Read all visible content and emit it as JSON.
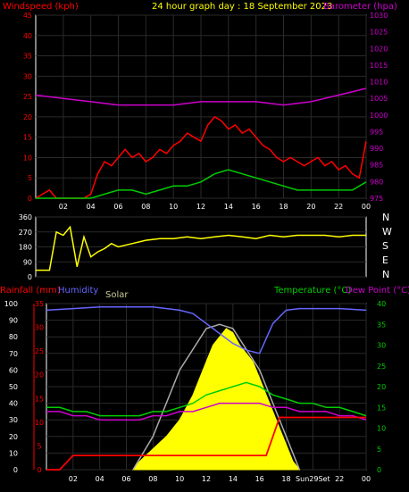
{
  "colors": {
    "bg": "#000000",
    "panel_border": "#ffffff",
    "grid": "#2a2a2a",
    "wind": "#ff0000",
    "wind_avg": "#00cc00",
    "gust_fill": "#c8f0c8",
    "baro": "#cc00cc",
    "dir": "#ffff00",
    "humidity": "#6666ff",
    "temp": "#00cc00",
    "dew": "#cc00cc",
    "solar": "#ffff00",
    "solar_curve": "#aaaaaa",
    "rain": "#ff0000",
    "rain_axis": "#ff0000",
    "title_text": "#ffff00"
  },
  "header": {
    "left_label": "Windspeed (kph)",
    "title": "24 hour graph day : 18 September 2023",
    "right_label": "Barometer (hpa)"
  },
  "bottom_header": {
    "rain_label": "Rainfall (mm)",
    "humidity_label": "Humidity",
    "solar_label": "Solar",
    "temp_label": "Temperature (°C)",
    "dew_label": "Dew Point (°C)"
  },
  "chart_data": [
    {
      "type": "line",
      "name": "wind",
      "x_ticks": [
        "02",
        "04",
        "06",
        "08",
        "10",
        "12",
        "14",
        "16",
        "18",
        "20",
        "22",
        "00"
      ],
      "y_left_ticks": [
        "0",
        "5",
        "10",
        "15",
        "20",
        "25",
        "30",
        "35",
        "40",
        "45"
      ],
      "y_left_range": [
        0,
        45
      ],
      "y_right_ticks": [
        "975",
        "980",
        "985",
        "990",
        "995",
        "1000",
        "1005",
        "1010",
        "1015",
        "1020",
        "1025",
        "1030"
      ],
      "y_right_range": [
        975,
        1030
      ],
      "x_range_hours": [
        0,
        24
      ],
      "wind_speed": {
        "x": [
          0,
          0.5,
          1,
          1.5,
          2,
          2.5,
          3,
          3.5,
          4,
          4.5,
          5,
          5.5,
          6,
          6.5,
          7,
          7.5,
          8,
          8.5,
          9,
          9.5,
          10,
          10.5,
          11,
          11.5,
          12,
          12.5,
          13,
          13.5,
          14,
          14.5,
          15,
          15.5,
          16,
          16.5,
          17,
          17.5,
          18,
          18.5,
          19,
          19.5,
          20,
          20.5,
          21,
          21.5,
          22,
          22.5,
          23,
          23.5,
          24
        ],
        "y": [
          0,
          1,
          2,
          0,
          0,
          0,
          0,
          0,
          1,
          6,
          9,
          8,
          10,
          12,
          10,
          11,
          9,
          10,
          12,
          11,
          13,
          14,
          16,
          15,
          14,
          18,
          20,
          19,
          17,
          18,
          16,
          17,
          15,
          13,
          12,
          10,
          9,
          10,
          9,
          8,
          9,
          10,
          8,
          9,
          7,
          8,
          6,
          5,
          14
        ]
      },
      "wind_avg": {
        "x": [
          0,
          1,
          2,
          3,
          4,
          5,
          6,
          7,
          8,
          9,
          10,
          11,
          12,
          13,
          14,
          15,
          16,
          17,
          18,
          19,
          20,
          21,
          22,
          23,
          24
        ],
        "y": [
          0,
          0,
          0,
          0,
          0,
          1,
          2,
          2,
          1,
          2,
          3,
          3,
          4,
          6,
          7,
          6,
          5,
          4,
          3,
          2,
          2,
          2,
          2,
          2,
          4
        ]
      },
      "barometer": {
        "x": [
          0,
          2,
          4,
          6,
          8,
          10,
          12,
          14,
          16,
          18,
          20,
          22,
          24
        ],
        "y": [
          1006,
          1005,
          1004,
          1003,
          1003,
          1003,
          1004,
          1004,
          1004,
          1003,
          1004,
          1006,
          1008
        ]
      }
    },
    {
      "type": "scatter",
      "name": "wind-direction",
      "y_ticks": [
        "0",
        "90",
        "180",
        "270",
        "360"
      ],
      "y_range": [
        0,
        360
      ],
      "compass": [
        "N",
        "W",
        "S",
        "E",
        "N"
      ],
      "x_range_hours": [
        0,
        24
      ],
      "x": [
        0,
        1,
        1.5,
        2,
        2.5,
        3,
        3.5,
        4,
        4.5,
        5,
        5.5,
        6,
        7,
        8,
        9,
        10,
        11,
        12,
        13,
        14,
        15,
        16,
        17,
        18,
        19,
        20,
        21,
        22,
        23,
        24
      ],
      "y": [
        40,
        40,
        270,
        250,
        300,
        60,
        240,
        120,
        150,
        170,
        200,
        180,
        200,
        220,
        230,
        230,
        240,
        230,
        240,
        250,
        240,
        230,
        250,
        240,
        250,
        250,
        250,
        240,
        250,
        250
      ]
    },
    {
      "type": "line",
      "name": "temperature-humidity-solar-rain",
      "x_ticks": [
        "02",
        "04",
        "06",
        "08",
        "10",
        "12",
        "14",
        "16",
        "18",
        "Sun29Set",
        "22",
        "00"
      ],
      "y_humidity_ticks": [
        "0",
        "10",
        "20",
        "30",
        "40",
        "50",
        "60",
        "70",
        "80",
        "90",
        "100"
      ],
      "y_humidity_range": [
        0,
        100
      ],
      "y_rain_ticks": [
        "0",
        "5",
        "10",
        "15",
        "20",
        "25",
        "30",
        "35"
      ],
      "y_rain_range": [
        0,
        35
      ],
      "y_temp_ticks": [
        "0",
        "5",
        "10",
        "15",
        "20",
        "25",
        "30",
        "35",
        "40"
      ],
      "y_temp_range": [
        0,
        40
      ],
      "x_range_hours": [
        0,
        24
      ],
      "humidity": {
        "x": [
          0,
          2,
          4,
          6,
          8,
          10,
          11,
          12,
          13,
          14,
          15,
          16,
          17,
          18,
          19,
          20,
          22,
          24
        ],
        "y": [
          96,
          97,
          98,
          98,
          98,
          96,
          94,
          88,
          82,
          76,
          72,
          70,
          88,
          96,
          97,
          97,
          97,
          96
        ]
      },
      "temperature": {
        "x": [
          0,
          1,
          2,
          3,
          4,
          5,
          6,
          7,
          8,
          9,
          10,
          11,
          12,
          13,
          14,
          15,
          16,
          17,
          18,
          19,
          20,
          21,
          22,
          23,
          24
        ],
        "y": [
          15,
          15,
          14,
          14,
          13,
          13,
          13,
          13,
          14,
          14,
          15,
          16,
          18,
          19,
          20,
          21,
          20,
          18,
          17,
          16,
          16,
          15,
          15,
          14,
          13
        ]
      },
      "dew_point": {
        "x": [
          0,
          1,
          2,
          3,
          4,
          5,
          6,
          7,
          8,
          9,
          10,
          11,
          12,
          13,
          14,
          15,
          16,
          17,
          18,
          19,
          20,
          21,
          22,
          23,
          24
        ],
        "y": [
          14,
          14,
          13,
          13,
          12,
          12,
          12,
          12,
          13,
          13,
          14,
          14,
          15,
          16,
          16,
          16,
          16,
          15,
          15,
          14,
          14,
          14,
          13,
          13,
          12
        ]
      },
      "solar": {
        "x": [
          6.5,
          7,
          8,
          9,
          10,
          11,
          11.5,
          12,
          12.5,
          13,
          13.5,
          14,
          14.5,
          15,
          15.5,
          16,
          16.5,
          17,
          17.5,
          18,
          18.5,
          19
        ],
        "y": [
          0,
          2,
          5,
          8,
          12,
          18,
          22,
          26,
          30,
          32,
          34,
          33,
          30,
          28,
          26,
          22,
          18,
          14,
          10,
          6,
          2,
          0
        ]
      },
      "solar_theory": {
        "x": [
          6.5,
          8,
          10,
          12,
          13,
          14,
          16,
          18,
          19
        ],
        "y": [
          0,
          8,
          24,
          34,
          35,
          34,
          24,
          8,
          0
        ]
      },
      "rainfall": {
        "x": [
          0,
          1,
          2,
          3,
          16.5,
          17,
          17.5,
          18,
          24
        ],
        "y": [
          0,
          0,
          3,
          3,
          3,
          7,
          11,
          11,
          11
        ]
      }
    }
  ]
}
